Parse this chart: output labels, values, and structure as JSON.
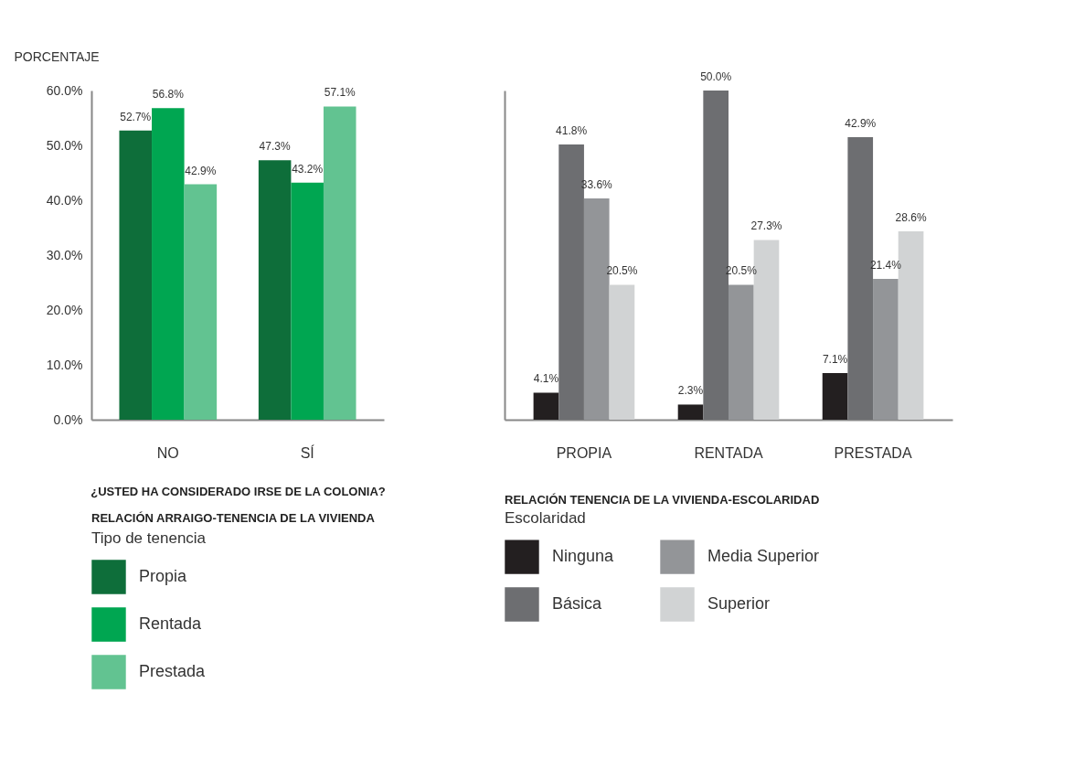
{
  "chart_data": [
    {
      "type": "bar",
      "title": "RELACIÓN ARRAIGO-TENENCIA DE LA VIVIENDA",
      "xlabel": "¿USTED HA CONSIDERADO IRSE DE LA COLONIA?",
      "ylabel": "PORCENTAJE",
      "legend_title": "Tipo de tenencia",
      "categories": [
        "NO",
        "SÍ"
      ],
      "series": [
        {
          "name": "Propia",
          "color": "#0e6e3a",
          "values": [
            52.7,
            47.3
          ],
          "value_labels": [
            "52.7%",
            "47.3%"
          ]
        },
        {
          "name": "Rentada",
          "color": "#00a651",
          "values": [
            56.8,
            43.2
          ],
          "value_labels": [
            "56.8%",
            "43.2%"
          ]
        },
        {
          "name": "Prestada",
          "color": "#62c391",
          "values": [
            42.9,
            57.1
          ],
          "value_labels": [
            "42.9%",
            "57.1%"
          ]
        }
      ],
      "ylim": [
        0,
        60
      ],
      "yticks": [
        {
          "value": 0,
          "label": "0.0%"
        },
        {
          "value": 10,
          "label": "10.0%"
        },
        {
          "value": 20,
          "label": "20.0%"
        },
        {
          "value": 30,
          "label": "30.0%"
        },
        {
          "value": 40,
          "label": "40.0%"
        },
        {
          "value": 50,
          "label": "50.0%"
        },
        {
          "value": 60,
          "label": "60.0%"
        }
      ],
      "legend": "bottom",
      "grid": false
    },
    {
      "type": "bar",
      "title": "RELACIÓN TENENCIA DE LA VIVIENDA-ESCOLARIDAD",
      "legend_title": "Escolaridad",
      "categories": [
        "PROPIA",
        "RENTADA",
        "PRESTADA"
      ],
      "series": [
        {
          "name": "Ninguna",
          "color": "#231f20",
          "values": [
            4.1,
            2.3,
            7.1
          ],
          "value_labels": [
            "4.1%",
            "2.3%",
            "7.1%"
          ]
        },
        {
          "name": "Básica",
          "color": "#6d6e71",
          "values": [
            41.8,
            50.0,
            42.9
          ],
          "value_labels": [
            "41.8%",
            "50.0%",
            "42.9%"
          ]
        },
        {
          "name": "Media Superior",
          "color": "#939598",
          "values": [
            33.6,
            20.5,
            21.4
          ],
          "value_labels": [
            "33.6%",
            "20.5%",
            "21.4%"
          ]
        },
        {
          "name": "Superior",
          "color": "#d1d3d4",
          "values": [
            20.5,
            27.3,
            28.6
          ],
          "value_labels": [
            "20.5%",
            "27.3%",
            "28.6%"
          ]
        }
      ],
      "tick_labels": "x",
      "legend": "bottom",
      "grid": false
    }
  ]
}
